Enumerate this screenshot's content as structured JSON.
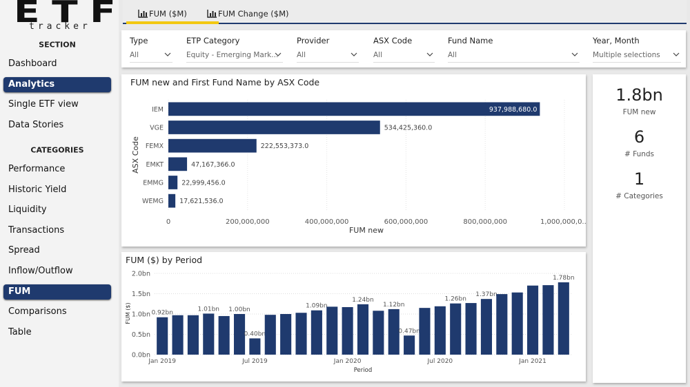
{
  "logo": {
    "mark": "ETF",
    "tagline": "tracker"
  },
  "sidebar": {
    "sections": [
      {
        "heading": "SECTION",
        "items": [
          {
            "label": "Dashboard"
          },
          {
            "label": "Analytics",
            "active": true
          },
          {
            "label": "Single ETF view"
          },
          {
            "label": "Data Stories"
          }
        ]
      },
      {
        "heading": "CATEGORIES",
        "items": [
          {
            "label": "Performance"
          },
          {
            "label": "Historic Yield"
          },
          {
            "label": "Liquidity"
          },
          {
            "label": "Transactions"
          },
          {
            "label": "Spread"
          },
          {
            "label": "Inflow/Outflow"
          },
          {
            "label": "FUM",
            "active": true
          },
          {
            "label": "Comparisons"
          },
          {
            "label": "Table"
          }
        ]
      }
    ]
  },
  "tabs": [
    {
      "label": "FUM ($M)",
      "active": true
    },
    {
      "label": "FUM Change ($M)"
    }
  ],
  "filters": [
    {
      "label": "Type",
      "value": "All"
    },
    {
      "label": "ETP Category",
      "value": "Equity - Emerging Mark..."
    },
    {
      "label": "Provider",
      "value": "All"
    },
    {
      "label": "ASX Code",
      "value": "All"
    },
    {
      "label": "Fund Name",
      "value": "All"
    },
    {
      "label": "Year, Month",
      "value": "Multiple selections"
    }
  ],
  "kpis": [
    {
      "value": "1.8bn",
      "label": "FUM new"
    },
    {
      "value": "6",
      "label": "# Funds"
    },
    {
      "value": "1",
      "label": "# Categories"
    }
  ],
  "chart_data": [
    {
      "type": "bar",
      "horizontal": true,
      "title": "FUM new and First Fund Name by ASX Code",
      "y_label": "ASX Code",
      "x_label": "FUM new",
      "categories": [
        "IEM",
        "VGE",
        "FEMX",
        "EMKT",
        "EMMG",
        "WEMG"
      ],
      "values": [
        937988680,
        534425360,
        222553373,
        47167366,
        22999456,
        17621536
      ],
      "value_labels": [
        "937,988,680.0",
        "534,425,360.0",
        "222,553,373.0",
        "47,167,366.0",
        "22,999,456.0",
        "17,621,536.0"
      ],
      "color": "#1f3a6e",
      "xlim": [
        0,
        1000000000
      ],
      "xticks": [
        0,
        {
          "value": 200000000,
          "label": "200,000,000"
        },
        {
          "value": 400000000,
          "label": "400,000,000"
        },
        {
          "value": 600000000,
          "label": "600,000,000"
        },
        {
          "value": 800000000,
          "label": "800,000,000"
        },
        {
          "value": 1000000000,
          "label": "1,000,000,0..."
        }
      ],
      "grid": true
    },
    {
      "type": "bar",
      "title": "FUM ($) by Period",
      "y_label": "FUM ($)",
      "x_label": "Period",
      "categories": [
        "Jan 2019",
        null,
        null,
        null,
        null,
        null,
        "Jul 2019",
        null,
        null,
        null,
        null,
        null,
        "Jan 2020",
        null,
        null,
        null,
        null,
        null,
        "Jul 2020",
        null,
        null,
        null,
        null,
        null,
        "Jan 2021",
        null,
        null
      ],
      "values": [
        0.92,
        0.97,
        0.97,
        1.01,
        0.95,
        1.0,
        0.4,
        0.98,
        1.0,
        1.03,
        1.09,
        1.18,
        1.17,
        1.24,
        1.08,
        1.12,
        0.47,
        1.15,
        1.19,
        1.26,
        1.27,
        1.37,
        1.49,
        1.53,
        1.7,
        1.71,
        1.78
      ],
      "value_labels": [
        "0.92bn",
        null,
        null,
        "1.01bn",
        null,
        "1.00bn",
        "0.40bn",
        null,
        null,
        null,
        "1.09bn",
        null,
        null,
        "1.24bn",
        null,
        "1.12bn",
        "0.47bn",
        null,
        null,
        "1.26bn",
        null,
        "1.37bn",
        null,
        null,
        null,
        null,
        "1.78bn"
      ],
      "color": "#1f3a6e",
      "ylim": [
        0,
        2.0
      ],
      "yticks": [
        {
          "value": 0,
          "label": "0.0bn"
        },
        {
          "value": 0.5,
          "label": "0.5bn"
        },
        {
          "value": 1.0,
          "label": "1.0bn"
        },
        {
          "value": 1.5,
          "label": "1.5bn"
        },
        {
          "value": 2.0,
          "label": "2.0bn"
        }
      ],
      "grid": true
    }
  ]
}
